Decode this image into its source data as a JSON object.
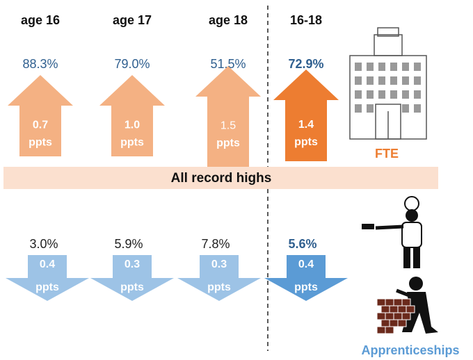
{
  "headers": [
    "age 16",
    "age 17",
    "age 18",
    "16-18"
  ],
  "fte": {
    "values": [
      "88.3%",
      "79.0%",
      "51.5%",
      "72.9%"
    ],
    "changes": [
      "0.7",
      "1.0",
      "1.5",
      "1.4"
    ],
    "unit": "ppts",
    "label": "FTE"
  },
  "banner": "All record highs",
  "apprenticeships": {
    "values": [
      "3.0%",
      "5.9%",
      "7.8%",
      "5.6%"
    ],
    "changes": [
      "0.4",
      "0.3",
      "0.3",
      "0.4"
    ],
    "unit": "ppts",
    "label": "Apprenticeships"
  }
}
